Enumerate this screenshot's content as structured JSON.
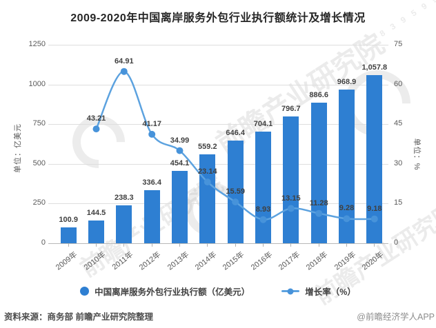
{
  "header": {
    "title": "2009-2020年中国离岸服务外包行业执行额统计及增长情况"
  },
  "chart_data": {
    "type": "bar+line",
    "title": "2009-2020年中国离岸服务外包行业执行额统计及增长情况",
    "categories": [
      "2009年",
      "2010年",
      "2011年",
      "2012年",
      "2013年",
      "2014年",
      "2015年",
      "2016年",
      "2017年",
      "2018年",
      "2019年",
      "2020年"
    ],
    "series": [
      {
        "name": "中国离岸服务外包行业执行额（亿美元）",
        "type": "bar",
        "y_axis": "left",
        "values": [
          100.9,
          144.5,
          238.3,
          336.4,
          454.1,
          559.2,
          646.4,
          704.1,
          796.7,
          886.6,
          968.9,
          1057.8
        ],
        "labels": [
          "100.9",
          "144.5",
          "238.3",
          "336.4",
          "454.1",
          "559.2",
          "646.4",
          "704.1",
          "796.7",
          "886.6",
          "968.9",
          "1,057.8"
        ]
      },
      {
        "name": "增长率（%）",
        "type": "line",
        "y_axis": "right",
        "start_index": 1,
        "values": [
          43.21,
          64.91,
          41.17,
          34.99,
          23.14,
          15.59,
          8.93,
          13.15,
          11.28,
          9.28,
          9.18
        ],
        "labels": [
          "43.21",
          "64.91",
          "41.17",
          "34.99",
          "23.14",
          "15.59",
          "8.93",
          "13.15",
          "11.28",
          "9.28",
          "9.18"
        ]
      }
    ],
    "left_axis": {
      "unit_label": "单位：亿美元",
      "ticks": [
        0,
        250,
        500,
        750,
        1000,
        1250
      ],
      "max": 1250
    },
    "right_axis": {
      "unit_label": "单位：%",
      "ticks": [
        0,
        15,
        30,
        45,
        60,
        75
      ],
      "max": 75
    },
    "grid": true,
    "legend_position": "bottom"
  },
  "colors": {
    "bar": "#2E7FD2",
    "line": "#5CA2DF",
    "marker": "#4793DA",
    "grid": "#DEDEDE",
    "axis": "#B8B8B8",
    "tick_text": "#595959",
    "value_text": "#404040",
    "title_text": "#262626"
  },
  "footer": {
    "source": "资料来源：商务部 前瞻产业研究院整理",
    "credit": "@前瞻经济学人APP"
  },
  "watermark": {
    "text": "前瞻产业研究院",
    "digits": "8 3 9 5 9 9"
  }
}
